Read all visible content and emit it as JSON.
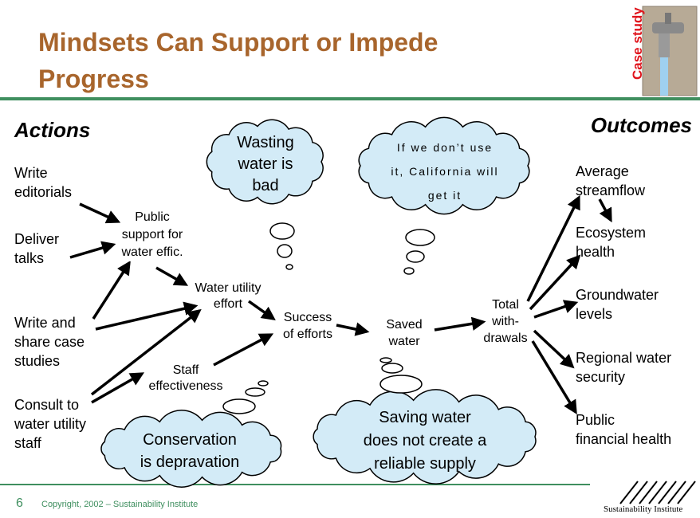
{
  "header": {
    "title": "Mindsets Can Support or Impede Progress",
    "badge": "Case study"
  },
  "columns": {
    "actions": "Actions",
    "outcomes": "Outcomes"
  },
  "actions": [
    [
      "Write",
      "editorials"
    ],
    [
      "Deliver",
      "talks"
    ],
    [
      "Write and",
      "share case",
      "studies"
    ],
    [
      "Consult to",
      "water utility",
      "staff"
    ]
  ],
  "intermediates": [
    [
      "Public",
      "support for",
      "water effic."
    ],
    [
      "Water utility",
      "effort"
    ],
    [
      "Staff",
      "effectiveness"
    ],
    [
      "Success",
      "of efforts"
    ],
    [
      "Saved",
      "water"
    ],
    [
      "Total",
      "with-",
      "drawals"
    ]
  ],
  "outcomes": [
    [
      "Average",
      "streamflow"
    ],
    [
      "Ecosystem",
      "health"
    ],
    [
      "Groundwater",
      "levels"
    ],
    [
      "Regional water",
      "security"
    ],
    [
      "Public",
      "financial health"
    ]
  ],
  "thoughts": [
    [
      "Wasting",
      "water is",
      "bad"
    ],
    [
      "If we don’t use",
      "it, California will",
      "get it"
    ],
    [
      "Conservation",
      "is depravation"
    ],
    [
      "Saving water",
      "does not create a",
      "reliable supply"
    ]
  ],
  "footer": {
    "page": "6",
    "copyright": "Copyright, 2002 – Sustainability Institute",
    "logo": "Sustainability Institute"
  }
}
